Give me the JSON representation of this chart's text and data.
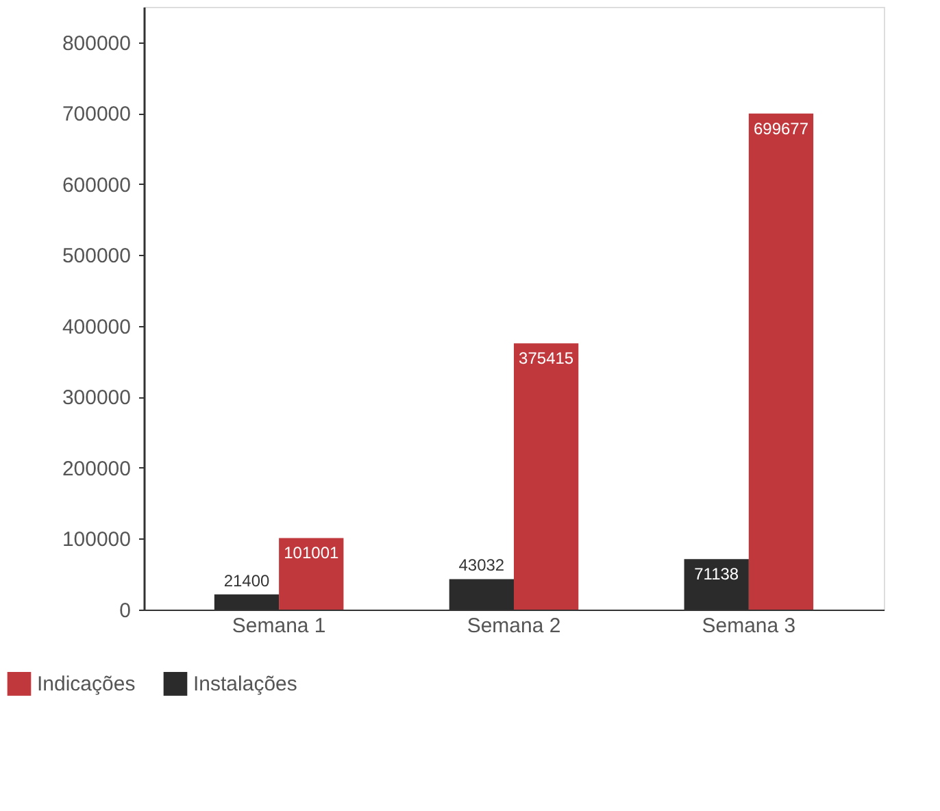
{
  "chart_data": {
    "type": "bar",
    "categories": [
      "Semana 1",
      "Semana 2",
      "Semana 3"
    ],
    "series": [
      {
        "name": "Indicações",
        "color": "#c0383c",
        "values": [
          101001,
          375415,
          699677
        ]
      },
      {
        "name": "Instalações",
        "color": "#2b2b2b",
        "values": [
          21400,
          43032,
          71138
        ]
      }
    ],
    "ylim": [
      0,
      850000
    ],
    "yticks": [
      0,
      100000,
      200000,
      300000,
      400000,
      500000,
      600000,
      700000,
      800000
    ],
    "data_labels": true,
    "legend": "bottom left",
    "grid": false
  }
}
